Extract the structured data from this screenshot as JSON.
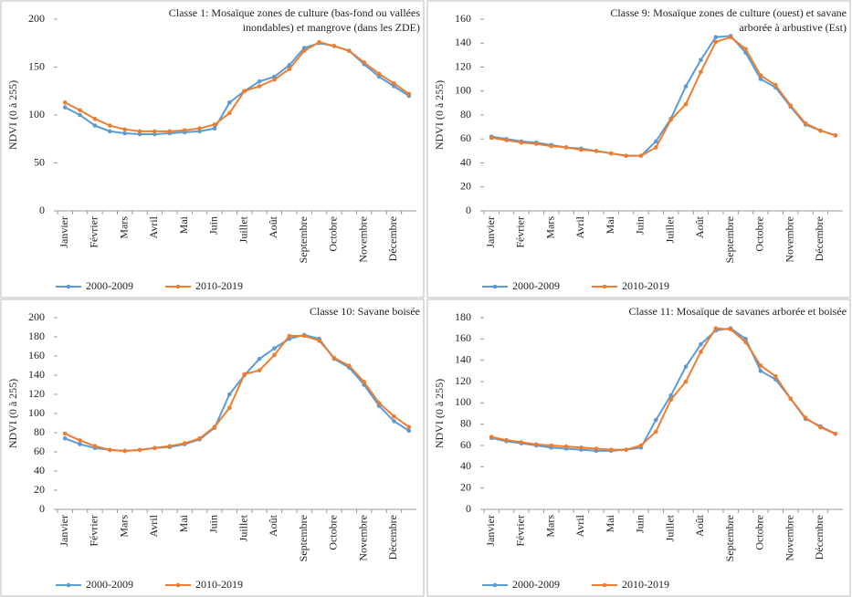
{
  "chart_data": [
    {
      "type": "line",
      "title": [
        "Classe 1: Mosaïque zones de culture (bas-fond ou vallées",
        "inondables) et mangrove (dans les ZDE)"
      ],
      "y_label": "NDVI (0 à 255)",
      "categories": [
        "Janvier",
        null,
        "Février",
        null,
        "Mars",
        null,
        "Avril",
        null,
        "Mai",
        null,
        "Juin",
        null,
        "Juillet",
        null,
        "Août",
        null,
        "Septembre",
        null,
        "Octobre",
        null,
        "Novembre",
        null,
        "Décembre",
        null
      ],
      "series": [
        {
          "name": "2000-2009",
          "color": "#5b9bd5",
          "values": [
            108,
            100,
            89,
            83,
            81,
            80,
            80,
            81,
            82,
            83,
            86,
            113,
            125,
            135,
            140,
            152,
            170,
            175,
            172,
            167,
            153,
            140,
            130,
            120
          ]
        },
        {
          "name": "2010-2019",
          "color": "#ed7d31",
          "values": [
            113,
            105,
            96,
            89,
            85,
            83,
            83,
            83,
            84,
            86,
            90,
            102,
            125,
            130,
            137,
            148,
            167,
            176,
            172,
            167,
            155,
            143,
            133,
            122
          ]
        }
      ],
      "ylim": [
        0,
        200
      ],
      "yticks": [
        0,
        50,
        100,
        150,
        200
      ]
    },
    {
      "type": "line",
      "title": [
        "Classe 9: Mosaïque zones de culture (ouest) et savane",
        "arborée à arbustive (Est)"
      ],
      "y_label": "NDVI (0 à 255)",
      "categories": [
        "Janvier",
        null,
        "Février",
        null,
        "Mars",
        null,
        "Avril",
        null,
        "Mai",
        null,
        "Juin",
        null,
        "Juillet",
        null,
        "Août",
        null,
        "Septembre",
        null,
        "Octobre",
        null,
        "Novembre",
        null,
        "Décembre",
        null
      ],
      "series": [
        {
          "name": "2000-2009",
          "color": "#5b9bd5",
          "values": [
            62,
            60,
            58,
            57,
            55,
            53,
            52,
            50,
            48,
            46,
            46,
            58,
            77,
            104,
            126,
            145,
            146,
            132,
            110,
            103,
            87,
            72,
            67,
            63
          ]
        },
        {
          "name": "2010-2019",
          "color": "#ed7d31",
          "values": [
            61,
            59,
            57,
            56,
            54,
            53,
            51,
            50,
            48,
            46,
            46,
            53,
            76,
            89,
            116,
            141,
            145,
            135,
            113,
            105,
            88,
            73,
            67,
            63
          ]
        }
      ],
      "ylim": [
        0,
        160
      ],
      "yticks": [
        0,
        20,
        40,
        60,
        80,
        100,
        120,
        140,
        160
      ]
    },
    {
      "type": "line",
      "title": [
        "Classe 10: Savane boisée"
      ],
      "y_label": "NDVI (0 à 255)",
      "categories": [
        "Janvier",
        null,
        "Février",
        null,
        "Mars",
        null,
        "Avril",
        null,
        "Mai",
        null,
        "Juin",
        null,
        "Juillet",
        null,
        "Août",
        null,
        "Septembre",
        null,
        "Octobre",
        null,
        "Novembre",
        null,
        "Décembre",
        null
      ],
      "series": [
        {
          "name": "2000-2009",
          "color": "#5b9bd5",
          "values": [
            74,
            68,
            64,
            62,
            61,
            62,
            64,
            65,
            68,
            73,
            85,
            120,
            140,
            157,
            168,
            178,
            182,
            178,
            157,
            148,
            130,
            108,
            92,
            82
          ]
        },
        {
          "name": "2010-2019",
          "color": "#ed7d31",
          "values": [
            79,
            72,
            66,
            62,
            61,
            62,
            64,
            66,
            69,
            74,
            86,
            106,
            141,
            145,
            161,
            181,
            181,
            176,
            158,
            150,
            133,
            111,
            97,
            86
          ]
        }
      ],
      "ylim": [
        0,
        200
      ],
      "yticks": [
        0,
        20,
        40,
        60,
        80,
        100,
        120,
        140,
        160,
        180,
        200
      ]
    },
    {
      "type": "line",
      "title": [
        "Classe 11: Mosaïque de savanes arborée et boisée"
      ],
      "y_label": "NDVI (0 à 255)",
      "categories": [
        "Janvier",
        null,
        "Février",
        null,
        "Mars",
        null,
        "Avril",
        null,
        "Mai",
        null,
        "Juin",
        null,
        "Juillet",
        null,
        "Août",
        null,
        "Septembre",
        null,
        "Octobre",
        null,
        "Novembre",
        null,
        "Décembre",
        null
      ],
      "series": [
        {
          "name": "2000-2009",
          "color": "#5b9bd5",
          "values": [
            67,
            64,
            62,
            60,
            58,
            57,
            56,
            55,
            55,
            56,
            58,
            84,
            107,
            134,
            155,
            168,
            170,
            160,
            130,
            122,
            104,
            85,
            78,
            71
          ]
        },
        {
          "name": "2010-2019",
          "color": "#ed7d31",
          "values": [
            68,
            65,
            63,
            61,
            60,
            59,
            58,
            57,
            56,
            56,
            60,
            73,
            103,
            120,
            148,
            170,
            169,
            157,
            135,
            125,
            104,
            86,
            77,
            71
          ]
        }
      ],
      "ylim": [
        0,
        180
      ],
      "yticks": [
        0,
        20,
        40,
        60,
        80,
        100,
        120,
        140,
        160,
        180
      ]
    }
  ]
}
